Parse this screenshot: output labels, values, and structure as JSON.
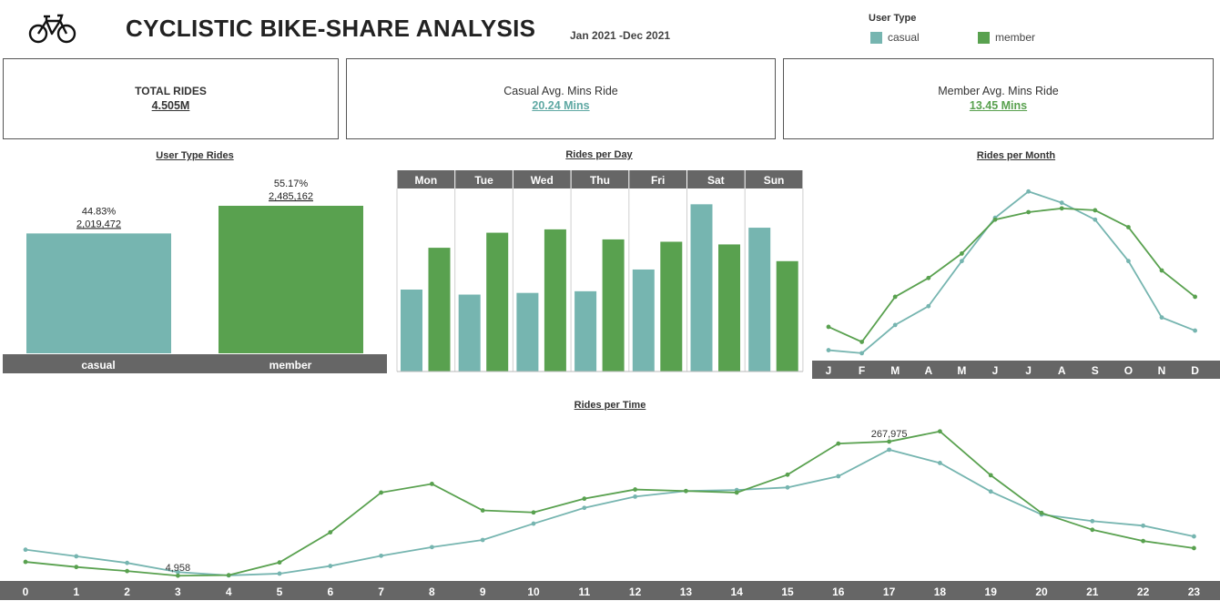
{
  "header": {
    "title": "CYCLISTIC BIKE-SHARE ANALYSIS",
    "date_range": "Jan 2021 -Dec 2021",
    "legend_title": "User Type",
    "legend": [
      {
        "label": "casual",
        "color": "#76b5b0"
      },
      {
        "label": "member",
        "color": "#59a14f"
      }
    ],
    "logo_icon": "bicycle-icon"
  },
  "kpis": {
    "total_rides": {
      "label": "TOTAL RIDES",
      "value": "4.505M"
    },
    "casual_avg": {
      "label": "Casual Avg. Mins Ride",
      "value": "20.24 Mins"
    },
    "member_avg": {
      "label": "Member Avg. Mins Ride",
      "value": "13.45 Mins"
    }
  },
  "colors": {
    "casual": "#76b5b0",
    "member": "#59a14f",
    "axis_band": "#666666"
  },
  "chart_data": [
    {
      "id": "user_type",
      "type": "bar",
      "title": "User Type Rides",
      "categories": [
        "casual",
        "member"
      ],
      "values": [
        2019472,
        2485162
      ],
      "value_labels": [
        "2,019,472",
        "2,485,162"
      ],
      "pct_labels": [
        "44.83%",
        "55.17%"
      ]
    },
    {
      "id": "per_day",
      "type": "bar",
      "title": "Rides per Day",
      "categories": [
        "Mon",
        "Tue",
        "Wed",
        "Thu",
        "Fri",
        "Sat",
        "Sun"
      ],
      "series": [
        {
          "name": "casual",
          "values": [
            245000,
            230000,
            235000,
            240000,
            305000,
            500000,
            430000
          ]
        },
        {
          "name": "member",
          "values": [
            370000,
            415000,
            425000,
            395000,
            388000,
            380000,
            330000
          ]
        }
      ],
      "ylim": [
        0,
        520000
      ]
    },
    {
      "id": "per_month",
      "type": "line",
      "title": "Rides per Month",
      "categories": [
        "J",
        "F",
        "M",
        "A",
        "M",
        "J",
        "J",
        "A",
        "S",
        "O",
        "N",
        "D"
      ],
      "series": [
        {
          "name": "casual",
          "values": [
            18000,
            10000,
            85000,
            135000,
            255000,
            370000,
            440000,
            410000,
            365000,
            255000,
            105000,
            70000
          ]
        },
        {
          "name": "member",
          "values": [
            80000,
            40000,
            160000,
            210000,
            275000,
            365000,
            385000,
            395000,
            390000,
            345000,
            230000,
            160000
          ]
        }
      ],
      "ylim": [
        0,
        460000
      ]
    },
    {
      "id": "per_time",
      "type": "line",
      "title": "Rides per Time",
      "categories": [
        "0",
        "1",
        "2",
        "3",
        "4",
        "5",
        "6",
        "7",
        "8",
        "9",
        "10",
        "11",
        "12",
        "13",
        "14",
        "15",
        "16",
        "17",
        "18",
        "19",
        "20",
        "21",
        "22",
        "23"
      ],
      "series": [
        {
          "name": "casual",
          "values": [
            56000,
            43000,
            30000,
            12000,
            5500,
            9000,
            24000,
            44000,
            61000,
            75000,
            107000,
            138000,
            160000,
            171000,
            173000,
            178000,
            200000,
            252000,
            226000,
            170000,
            125000,
            112000,
            103000,
            82000
          ]
        },
        {
          "name": "member",
          "values": [
            32000,
            22000,
            14000,
            4958,
            6000,
            31000,
            90000,
            168000,
            185000,
            133000,
            129000,
            156000,
            174000,
            171000,
            168000,
            203000,
            264000,
            267975,
            288000,
            202000,
            128000,
            95000,
            73000,
            59000
          ]
        }
      ],
      "annotations": [
        {
          "series": "member",
          "index": 3,
          "text": "4,958"
        },
        {
          "series": "member",
          "index": 17,
          "text": "267,975"
        }
      ],
      "ylim": [
        0,
        300000
      ]
    }
  ]
}
